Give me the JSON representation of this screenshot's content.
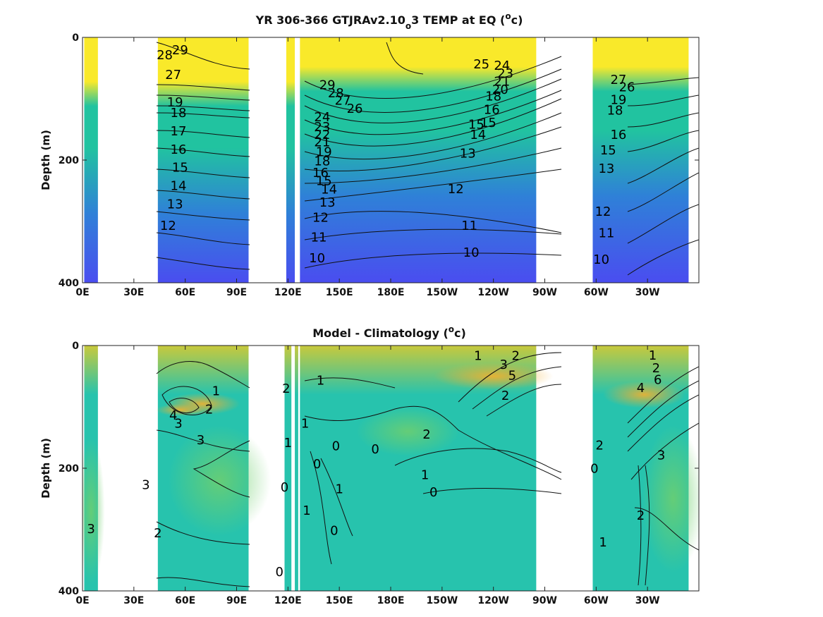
{
  "chart_data": [
    {
      "type": "heatmap",
      "title_parts": [
        "YR 306-366 GTJRAv2.10",
        "o",
        "3 TEMP at EQ (",
        "o",
        "c)"
      ],
      "ylabel": "Depth (m)",
      "ylim": [
        400,
        0
      ],
      "yticks": [
        "0",
        "200",
        "400"
      ],
      "xticks": [
        "0E",
        "30E",
        "60E",
        "90E",
        "120E",
        "150E",
        "180E",
        "150W",
        "120W",
        "90W",
        "60W",
        "30W"
      ],
      "colors": {
        "warm": "#f9e92a",
        "mid": "#21c3a0",
        "cool": "#2f80d8",
        "deep": "#4a4df0"
      },
      "ocean_segments": [
        {
          "lon_start": 1,
          "lon_end": 9
        },
        {
          "lon_start": 44,
          "lon_end": 97
        },
        {
          "lon_start": 119,
          "lon_end": 124
        },
        {
          "lon_start": 127,
          "lon_end": 265
        },
        {
          "lon_start": 298,
          "lon_end": 354
        }
      ],
      "contour_labels": [
        {
          "text": "29",
          "lon": 57,
          "depth": 22
        },
        {
          "text": "28",
          "lon": 48,
          "depth": 30
        },
        {
          "text": "27",
          "lon": 53,
          "depth": 62
        },
        {
          "text": "19",
          "lon": 54,
          "depth": 107
        },
        {
          "text": "18",
          "lon": 56,
          "depth": 124
        },
        {
          "text": "17",
          "lon": 56,
          "depth": 154
        },
        {
          "text": "16",
          "lon": 56,
          "depth": 184
        },
        {
          "text": "15",
          "lon": 57,
          "depth": 213
        },
        {
          "text": "14",
          "lon": 56,
          "depth": 243
        },
        {
          "text": "13",
          "lon": 54,
          "depth": 273
        },
        {
          "text": "12",
          "lon": 50,
          "depth": 308
        },
        {
          "text": "29",
          "lon": 143,
          "depth": 79
        },
        {
          "text": "28",
          "lon": 148,
          "depth": 92
        },
        {
          "text": "27",
          "lon": 152,
          "depth": 104
        },
        {
          "text": "26",
          "lon": 159,
          "depth": 117
        },
        {
          "text": "24",
          "lon": 140,
          "depth": 131
        },
        {
          "text": "23",
          "lon": 140,
          "depth": 147
        },
        {
          "text": "22",
          "lon": 140,
          "depth": 160
        },
        {
          "text": "21",
          "lon": 140,
          "depth": 172
        },
        {
          "text": "19",
          "lon": 141,
          "depth": 188
        },
        {
          "text": "18",
          "lon": 140,
          "depth": 203
        },
        {
          "text": "16",
          "lon": 139,
          "depth": 222
        },
        {
          "text": "15",
          "lon": 141,
          "depth": 235
        },
        {
          "text": "14",
          "lon": 144,
          "depth": 249
        },
        {
          "text": "13",
          "lon": 143,
          "depth": 270
        },
        {
          "text": "12",
          "lon": 139,
          "depth": 295
        },
        {
          "text": "11",
          "lon": 138,
          "depth": 327
        },
        {
          "text": "10",
          "lon": 137,
          "depth": 361
        },
        {
          "text": "25",
          "lon": 233,
          "depth": 45
        },
        {
          "text": "24",
          "lon": 245,
          "depth": 47
        },
        {
          "text": "23",
          "lon": 247,
          "depth": 60
        },
        {
          "text": "21",
          "lon": 245,
          "depth": 73
        },
        {
          "text": "20",
          "lon": 244,
          "depth": 86
        },
        {
          "text": "18",
          "lon": 240,
          "depth": 97
        },
        {
          "text": "16",
          "lon": 239,
          "depth": 119
        },
        {
          "text": "15",
          "lon": 237,
          "depth": 140
        },
        {
          "text": "15",
          "lon": 230,
          "depth": 143
        },
        {
          "text": "14",
          "lon": 231,
          "depth": 160
        },
        {
          "text": "13",
          "lon": 225,
          "depth": 190
        },
        {
          "text": "12",
          "lon": 218,
          "depth": 248
        },
        {
          "text": "11",
          "lon": 226,
          "depth": 308
        },
        {
          "text": "10",
          "lon": 227,
          "depth": 352
        },
        {
          "text": "27",
          "lon": 313,
          "depth": 70
        },
        {
          "text": "26",
          "lon": 318,
          "depth": 82
        },
        {
          "text": "19",
          "lon": 313,
          "depth": 103
        },
        {
          "text": "18",
          "lon": 311,
          "depth": 120
        },
        {
          "text": "16",
          "lon": 313,
          "depth": 160
        },
        {
          "text": "15",
          "lon": 307,
          "depth": 185
        },
        {
          "text": "13",
          "lon": 306,
          "depth": 215
        },
        {
          "text": "12",
          "lon": 304,
          "depth": 285
        },
        {
          "text": "11",
          "lon": 306,
          "depth": 320
        },
        {
          "text": "10",
          "lon": 303,
          "depth": 363
        }
      ]
    },
    {
      "type": "heatmap",
      "title_parts": [
        "Model - Climatology (",
        "o",
        "c)"
      ],
      "ylabel": "Depth (m)",
      "ylim": [
        400,
        0
      ],
      "yticks": [
        "0",
        "200",
        "400"
      ],
      "xticks": [
        "0E",
        "30E",
        "60E",
        "90E",
        "120E",
        "150E",
        "180E",
        "150W",
        "120W",
        "90W",
        "60W",
        "30W"
      ],
      "colors": {
        "base": "#27c3ad",
        "warm": "#c8c93c",
        "green": "#6fcf6e",
        "hot": "#f2b02e"
      },
      "ocean_segments": [
        {
          "lon_start": 1,
          "lon_end": 9
        },
        {
          "lon_start": 44,
          "lon_end": 97
        },
        {
          "lon_start": 118,
          "lon_end": 122
        },
        {
          "lon_start": 124,
          "lon_end": 126
        },
        {
          "lon_start": 127,
          "lon_end": 265
        },
        {
          "lon_start": 298,
          "lon_end": 354
        }
      ],
      "contour_labels": [
        {
          "text": "1",
          "lon": 78,
          "depth": 75
        },
        {
          "text": "2",
          "lon": 74,
          "depth": 105
        },
        {
          "text": "4",
          "lon": 53,
          "depth": 115
        },
        {
          "text": "3",
          "lon": 56,
          "depth": 128
        },
        {
          "text": "3",
          "lon": 69,
          "depth": 155
        },
        {
          "text": "3",
          "lon": 37,
          "depth": 228
        },
        {
          "text": "3",
          "lon": 5,
          "depth": 300
        },
        {
          "text": "2",
          "lon": 44,
          "depth": 307
        },
        {
          "text": "2",
          "lon": 119,
          "depth": 71
        },
        {
          "text": "1",
          "lon": 120,
          "depth": 160
        },
        {
          "text": "0",
          "lon": 118,
          "depth": 232
        },
        {
          "text": "1",
          "lon": 131,
          "depth": 270
        },
        {
          "text": "0",
          "lon": 115,
          "depth": 370
        },
        {
          "text": "1",
          "lon": 139,
          "depth": 58
        },
        {
          "text": "0",
          "lon": 137,
          "depth": 194
        },
        {
          "text": "1",
          "lon": 130,
          "depth": 128
        },
        {
          "text": "0",
          "lon": 148,
          "depth": 165
        },
        {
          "text": "1",
          "lon": 150,
          "depth": 235
        },
        {
          "text": "0",
          "lon": 147,
          "depth": 303
        },
        {
          "text": "0",
          "lon": 171,
          "depth": 170
        },
        {
          "text": "1",
          "lon": 200,
          "depth": 212
        },
        {
          "text": "0",
          "lon": 205,
          "depth": 240
        },
        {
          "text": "2",
          "lon": 201,
          "depth": 146
        },
        {
          "text": "1",
          "lon": 231,
          "depth": 18
        },
        {
          "text": "2",
          "lon": 253,
          "depth": 18
        },
        {
          "text": "3",
          "lon": 246,
          "depth": 32
        },
        {
          "text": "5",
          "lon": 251,
          "depth": 50
        },
        {
          "text": "2",
          "lon": 247,
          "depth": 83
        },
        {
          "text": "1",
          "lon": 333,
          "depth": 17
        },
        {
          "text": "2",
          "lon": 335,
          "depth": 38
        },
        {
          "text": "6",
          "lon": 336,
          "depth": 57
        },
        {
          "text": "4",
          "lon": 326,
          "depth": 70
        },
        {
          "text": "3",
          "lon": 338,
          "depth": 180
        },
        {
          "text": "2",
          "lon": 302,
          "depth": 164
        },
        {
          "text": "0",
          "lon": 299,
          "depth": 202
        },
        {
          "text": "2",
          "lon": 326,
          "depth": 278
        },
        {
          "text": "1",
          "lon": 304,
          "depth": 322
        }
      ]
    }
  ]
}
